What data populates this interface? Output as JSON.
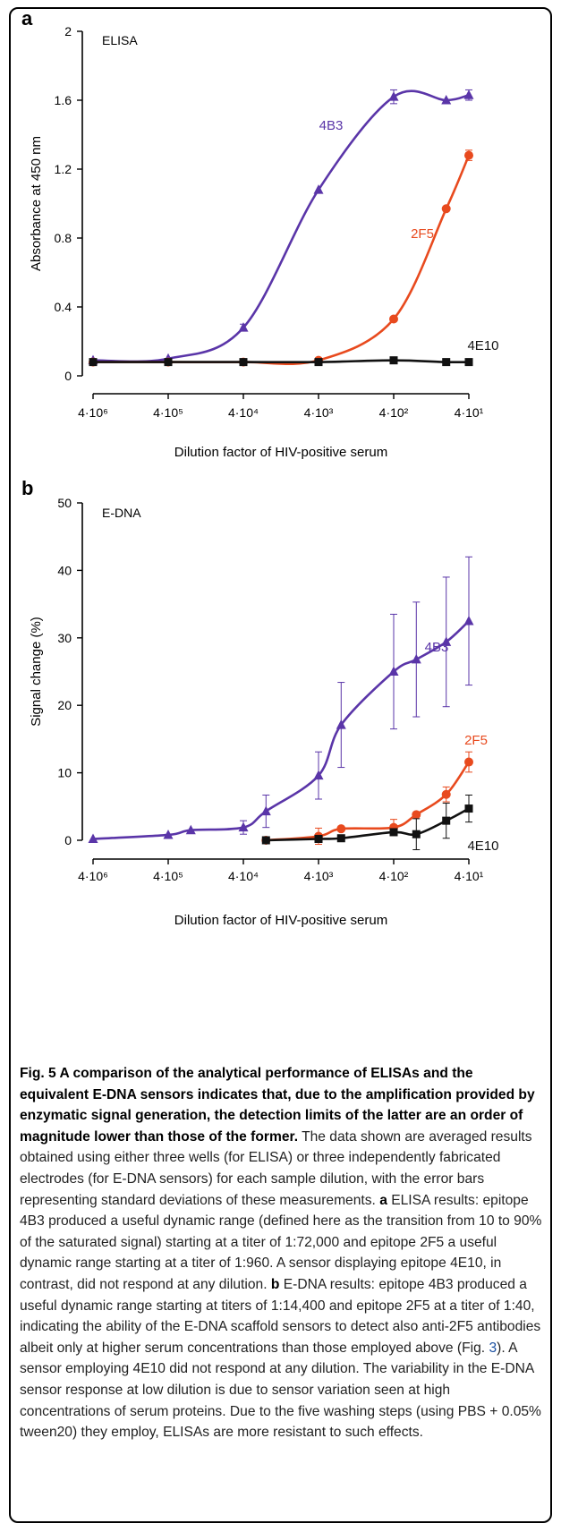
{
  "chart_data": [
    {
      "panel": "a",
      "type": "scatter",
      "title": "ELISA",
      "xlabel": "Dilution factor of HIV-positive serum",
      "ylabel": "Absorbance at 450 nm",
      "xscale": "log-reversed",
      "xticks": [
        "4·10⁶",
        "4·10⁵",
        "4·10⁴",
        "4·10³",
        "4·10²",
        "4·10¹"
      ],
      "yticks": [
        "0",
        "0.4",
        "0.8",
        "1.2",
        "1.6",
        "2"
      ],
      "ylim": [
        0,
        2
      ],
      "series": [
        {
          "name": "4B3",
          "color": "#5a35a8",
          "marker": "triangle",
          "x": [
            4000000,
            400000,
            40000,
            4000,
            400,
            80,
            40
          ],
          "y": [
            0.09,
            0.1,
            0.28,
            1.08,
            1.62,
            1.6,
            1.63
          ],
          "err": [
            0,
            0,
            0.02,
            0,
            0.04,
            0,
            0.03
          ]
        },
        {
          "name": "2F5",
          "color": "#e84a1e",
          "marker": "circle",
          "x": [
            4000000,
            400000,
            40000,
            4000,
            400,
            80,
            40
          ],
          "y": [
            0.08,
            0.08,
            0.08,
            0.09,
            0.33,
            0.97,
            1.28
          ],
          "err": [
            0,
            0,
            0,
            0,
            0,
            0,
            0.03
          ]
        },
        {
          "name": "4E10",
          "color": "#111111",
          "marker": "square",
          "x": [
            4000000,
            400000,
            40000,
            4000,
            400,
            80,
            40
          ],
          "y": [
            0.08,
            0.08,
            0.08,
            0.08,
            0.09,
            0.08,
            0.08
          ],
          "err": [
            0,
            0,
            0,
            0,
            0,
            0,
            0
          ]
        }
      ]
    },
    {
      "panel": "b",
      "type": "scatter",
      "title": "E-DNA",
      "xlabel": "Dilution factor of HIV-positive serum",
      "ylabel": "Signal change (%)",
      "xscale": "log-reversed",
      "xticks": [
        "4·10⁶",
        "4·10⁵",
        "4·10⁴",
        "4·10³",
        "4·10²",
        "4·10¹"
      ],
      "yticks": [
        "0",
        "10",
        "20",
        "30",
        "40",
        "50"
      ],
      "ylim": [
        0,
        50
      ],
      "series": [
        {
          "name": "4B3",
          "color": "#5a35a8",
          "marker": "triangle",
          "x": [
            4000000,
            400000,
            200000,
            40000,
            20000,
            4000,
            2000,
            400,
            200,
            80,
            40
          ],
          "y": [
            0.2,
            0.8,
            1.5,
            1.9,
            4.3,
            9.6,
            17.1,
            25.0,
            26.8,
            29.4,
            32.5
          ],
          "err": [
            0,
            0,
            0,
            1.0,
            2.4,
            3.5,
            6.3,
            8.5,
            8.5,
            9.6,
            9.5
          ]
        },
        {
          "name": "2F5",
          "color": "#e84a1e",
          "marker": "circle",
          "x": [
            20000,
            4000,
            2000,
            400,
            200,
            80,
            40
          ],
          "y": [
            0.0,
            0.6,
            1.7,
            1.9,
            3.8,
            6.8,
            11.6
          ],
          "err": [
            0,
            1.2,
            0,
            1.2,
            0,
            1.1,
            1.5
          ]
        },
        {
          "name": "4E10",
          "color": "#111111",
          "marker": "square",
          "x": [
            20000,
            4000,
            2000,
            400,
            200,
            80,
            40
          ],
          "y": [
            0.0,
            0.2,
            0.3,
            1.2,
            0.9,
            2.9,
            4.7
          ],
          "err": [
            0,
            0,
            0,
            0,
            2.3,
            2.6,
            2.0
          ]
        }
      ]
    }
  ],
  "caption": {
    "title": "Fig. 5 A comparison of the analytical performance of ELISAs and the equivalent E-DNA sensors indicates that, due to the amplification provided by enzymatic signal generation, the detection limits of the latter are an order of magnitude lower than those of the former.",
    "body1": " The data shown are averaged results obtained using either three wells (for ELISA) or three independently fabricated electrodes (for E-DNA sensors) for each sample dilution, with the error bars representing standard deviations of these measurements. ",
    "a_label": "a",
    "a_text": " ELISA results: epitope 4B3 produced a useful dynamic range (defined here as the transition from 10 to 90% of the saturated signal) starting at a titer of 1:72,000 and epitope 2F5 a useful dynamic range starting at a titer of 1:960. A sensor displaying epitope 4E10, in contrast, did not respond at any dilution. ",
    "b_label": "b",
    "b_text_1": " E-DNA results: epitope 4B3 produced a useful dynamic range starting at titers of 1:14,400 and epitope 2F5 at a titer of 1:40, indicating the ability of the E-DNA scaffold sensors to detect also anti-2F5 antibodies albeit only at higher serum concentrations than those employed above (Fig. ",
    "fig_ref": "3",
    "b_text_2": "). A sensor employing 4E10 did not respond at any dilution. The variability in the E-DNA sensor response at low dilution is due to sensor variation seen at high concentrations of serum proteins. Due to the five washing steps (using PBS + 0.05% tween20) they employ, ELISAs are more resistant to such effects."
  }
}
